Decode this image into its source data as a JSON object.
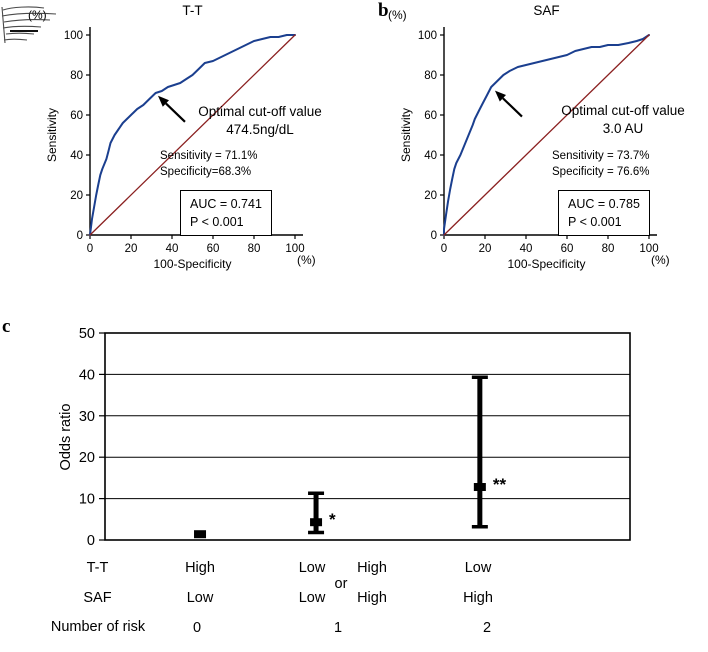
{
  "figure": {
    "panel_b_label": "b",
    "panel_c_label": "c"
  },
  "panels": {
    "a": {
      "title": "T-T",
      "y_unit": "(%)",
      "x_unit": "(%)",
      "ylabel": "Sensitivity",
      "xlabel": "100-Specificity",
      "cutoff_line1": "Optimal cut-off value",
      "cutoff_line2": "474.5ng/dL",
      "sens": "Sensitivity = 71.1%",
      "spec": "Specificity=68.3%",
      "auc": "AUC = 0.741",
      "p": "P < 0.001"
    },
    "b": {
      "title": "SAF",
      "y_unit": "(%)",
      "x_unit": "(%)",
      "ylabel": "Sensitivity",
      "xlabel": "100-Specificity",
      "cutoff_line1": "Optimal cut-off value",
      "cutoff_line2": "3.0 AU",
      "sens": "Sensitivity = 73.7%",
      "spec": "Specificity = 76.6%",
      "auc": "AUC = 0.785",
      "p": "P < 0.001"
    },
    "c": {
      "ylabel": "Odds ratio",
      "rows": {
        "tt": "T-T",
        "saf": "SAF",
        "risk": "Number of risk"
      },
      "cols": {
        "g0_tt": "High",
        "g0_saf": "Low",
        "g0_n": "0",
        "g1a_tt": "Low",
        "g1a_saf": "Low",
        "or_word": "or",
        "g1b_tt": "High",
        "g1b_saf": "High",
        "g1_n": "1",
        "g2_tt": "Low",
        "g2_saf": "High",
        "g2_n": "2"
      }
    }
  },
  "chart_data": [
    {
      "id": "roc_tt",
      "type": "line",
      "title": "T-T",
      "xlabel": "100-Specificity (%)",
      "ylabel": "Sensitivity (%)",
      "xlim": [
        0,
        100
      ],
      "ylim": [
        0,
        100
      ],
      "ticks": [
        0,
        20,
        40,
        60,
        80,
        100
      ],
      "grid": false,
      "series": [
        {
          "name": "roc-curve",
          "color": "#1b3f8f",
          "width": 2,
          "x": [
            0,
            1,
            2,
            3,
            4,
            5,
            6,
            8,
            9,
            10,
            12,
            14,
            16,
            18,
            20,
            23,
            26,
            29,
            32,
            35,
            38,
            41,
            44,
            47,
            50,
            53,
            56,
            60,
            64,
            68,
            72,
            76,
            80,
            84,
            88,
            92,
            96,
            100
          ],
          "y": [
            0,
            8,
            14,
            20,
            25,
            30,
            33,
            38,
            42,
            46,
            50,
            53,
            56,
            58,
            60,
            63,
            65,
            68,
            71,
            72,
            74,
            75,
            76,
            78,
            80,
            83,
            86,
            87,
            89,
            91,
            93,
            95,
            97,
            98,
            99,
            99,
            100,
            100
          ]
        },
        {
          "name": "reference-diagonal",
          "color": "#8b2121",
          "width": 1.3,
          "x": [
            0,
            100
          ],
          "y": [
            0,
            100
          ]
        }
      ],
      "optimal_point": {
        "x": 31.7,
        "y": 71.1,
        "cutoff": "474.5ng/dL"
      },
      "auc": 0.741,
      "p_value": "P < 0.001",
      "sensitivity_pct": 71.1,
      "specificity_pct": 68.3
    },
    {
      "id": "roc_saf",
      "type": "line",
      "title": "SAF",
      "xlabel": "100-Specificity (%)",
      "ylabel": "Sensitivity (%)",
      "xlim": [
        0,
        100
      ],
      "ylim": [
        0,
        100
      ],
      "ticks": [
        0,
        20,
        40,
        60,
        80,
        100
      ],
      "grid": false,
      "series": [
        {
          "name": "roc-curve",
          "color": "#1b3f8f",
          "width": 2,
          "x": [
            0,
            0,
            1,
            2,
            3,
            4,
            5,
            6,
            8,
            10,
            12,
            14,
            15,
            17,
            19,
            21,
            23,
            26,
            29,
            32,
            36,
            40,
            44,
            48,
            52,
            56,
            60,
            64,
            68,
            72,
            76,
            80,
            85,
            90,
            94,
            97,
            100
          ],
          "y": [
            0,
            3,
            10,
            17,
            23,
            28,
            33,
            36,
            40,
            45,
            50,
            55,
            58,
            62,
            66,
            70,
            74,
            77,
            80,
            82,
            84,
            85,
            86,
            87,
            88,
            89,
            90,
            92,
            93,
            94,
            94,
            95,
            95,
            96,
            97,
            98,
            100
          ]
        },
        {
          "name": "reference-diagonal",
          "color": "#8b2121",
          "width": 1.3,
          "x": [
            0,
            100
          ],
          "y": [
            0,
            100
          ]
        }
      ],
      "optimal_point": {
        "x": 23.4,
        "y": 73.7,
        "cutoff": "3.0 AU"
      },
      "auc": 0.785,
      "p_value": "P < 0.001",
      "sensitivity_pct": 73.7,
      "specificity_pct": 76.6
    },
    {
      "id": "odds_ratio",
      "type": "scatter",
      "ylabel": "Odds ratio",
      "ylim": [
        0,
        50
      ],
      "yticks": [
        0,
        10,
        20,
        30,
        40,
        50
      ],
      "grid": true,
      "groups": [
        {
          "tt": "High",
          "saf": "Low",
          "n_risk": 0,
          "x_frac": 0.181,
          "or": 1.4,
          "ci_low": null,
          "ci_high": null,
          "sig": ""
        },
        {
          "tt": "Low or High",
          "saf": "Low or High",
          "n_risk": 1,
          "x_frac": 0.402,
          "or": 4.3,
          "ci_low": 1.8,
          "ci_high": 11.3,
          "sig": "*"
        },
        {
          "tt": "Low",
          "saf": "High",
          "n_risk": 2,
          "x_frac": 0.714,
          "or": 12.8,
          "ci_low": 3.2,
          "ci_high": 39.3,
          "sig": "**"
        }
      ]
    }
  ]
}
